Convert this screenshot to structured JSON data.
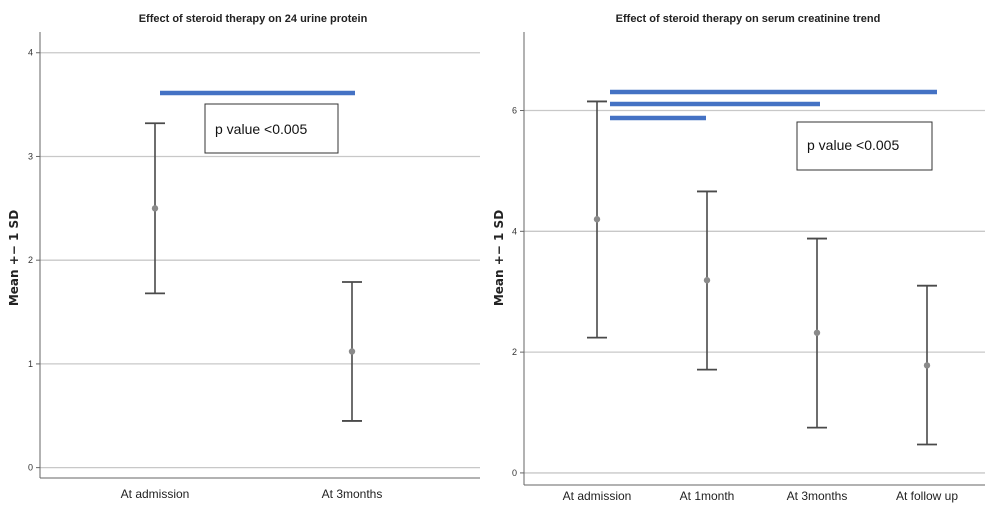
{
  "chart_data": [
    {
      "type": "errorbar",
      "title": "Effect of steroid therapy on 24 urine protein",
      "ylabel": "Mean +− 1 SD",
      "xlabel": "",
      "ylim": [
        -0.1,
        4.2
      ],
      "yticks": [
        "0",
        "1",
        "2",
        "3",
        "4"
      ],
      "categories": [
        "At admission",
        "At 3months"
      ],
      "mean": [
        2.5,
        1.12
      ],
      "lower": [
        1.68,
        0.45
      ],
      "upper": [
        3.32,
        1.79
      ],
      "grid": "horizontal",
      "significance_bars": [
        {
          "from": 0,
          "to": 1
        }
      ],
      "annotation": "p value <0.005",
      "marker_color": "#8a8a8a",
      "bar_color": "#4a4a4a",
      "sig_color": "#4472c4"
    },
    {
      "type": "errorbar",
      "title": "Effect of steroid therapy on serum creatinine trend",
      "ylabel": "Mean +− 1 SD",
      "xlabel": "",
      "ylim": [
        -0.2,
        7.3
      ],
      "yticks": [
        "0",
        "2",
        "4",
        "6"
      ],
      "categories": [
        "At admission",
        "At 1month",
        "At 3months",
        "At follow up"
      ],
      "mean": [
        4.2,
        3.19,
        2.32,
        1.78
      ],
      "lower": [
        2.24,
        1.71,
        0.75,
        0.47
      ],
      "upper": [
        6.15,
        4.66,
        3.88,
        3.1
      ],
      "grid": "horizontal",
      "significance_bars": [
        {
          "from": 0,
          "to": 3
        },
        {
          "from": 0,
          "to": 2
        },
        {
          "from": 0,
          "to": 1
        }
      ],
      "annotation": "p value <0.005",
      "marker_color": "#8a8a8a",
      "bar_color": "#4a4a4a",
      "sig_color": "#4472c4"
    }
  ]
}
